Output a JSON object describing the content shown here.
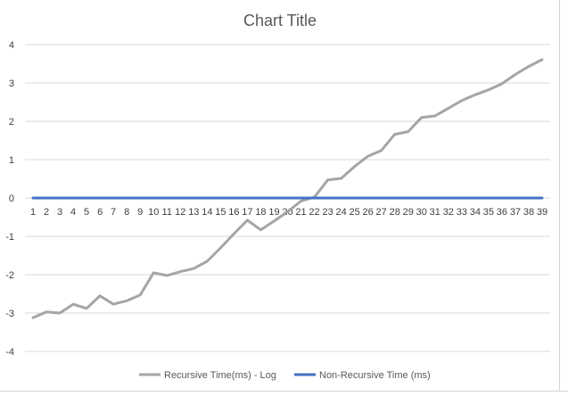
{
  "chart_data": {
    "type": "line",
    "title": "Chart Title",
    "categories": [
      "1",
      "2",
      "3",
      "4",
      "5",
      "6",
      "7",
      "8",
      "9",
      "10",
      "11",
      "12",
      "13",
      "14",
      "15",
      "16",
      "17",
      "18",
      "19",
      "20",
      "21",
      "22",
      "23",
      "24",
      "25",
      "26",
      "27",
      "28",
      "29",
      "30",
      "31",
      "32",
      "33",
      "34",
      "35",
      "36",
      "37",
      "38",
      "39"
    ],
    "series": [
      {
        "name": "Recursive Time(ms) - Log",
        "color": "#a5a5a5",
        "values": [
          -3.12,
          -2.97,
          -3.0,
          -2.77,
          -2.88,
          -2.55,
          -2.77,
          -2.68,
          -2.53,
          -1.95,
          -2.02,
          -1.92,
          -1.84,
          -1.65,
          -1.3,
          -0.93,
          -0.58,
          -0.83,
          -0.6,
          -0.36,
          -0.08,
          0.02,
          0.47,
          0.51,
          0.82,
          1.09,
          1.24,
          1.66,
          1.73,
          2.1,
          2.14,
          2.34,
          2.54,
          2.69,
          2.82,
          2.98,
          3.22,
          3.43,
          3.61
        ]
      },
      {
        "name": "Non-Recursive Time (ms)",
        "color": "#4472c4",
        "values": [
          0,
          0,
          0,
          0,
          0,
          0,
          0,
          0,
          0,
          0,
          0,
          0,
          0,
          0,
          0,
          0,
          0,
          0,
          0,
          0,
          0,
          0,
          0,
          0,
          0,
          0,
          0,
          0,
          0,
          0,
          0,
          0,
          0,
          0,
          0,
          0,
          0,
          0,
          0
        ]
      }
    ],
    "ylim": [
      -4,
      4
    ],
    "yticks": [
      "4",
      "3",
      "2",
      "1",
      "0",
      "-1",
      "-2",
      "-3",
      "-4"
    ],
    "grid": true,
    "legend": "bottom"
  }
}
